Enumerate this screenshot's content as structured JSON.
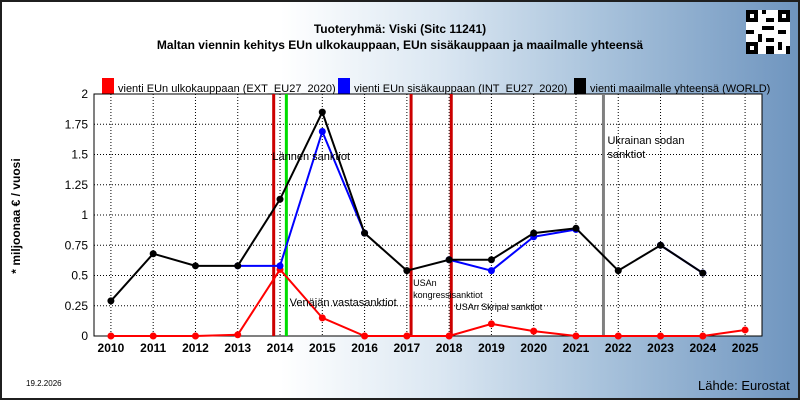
{
  "header": {
    "title": "Tuoteryhmä: Viski (Sitc 11241)",
    "subtitle": "Maltan viennin kehitys EUn ulkokauppaan, EUn sisäkauppaan ja maailmalle yhteensä"
  },
  "footer": {
    "date": "19.2.2026",
    "source": "Lähde: Eurostat"
  },
  "colors": {
    "ext": "#ff0000",
    "int": "#0000ff",
    "world": "#000000",
    "sanction_red": "#cc0000",
    "sanction_green": "#00dd00",
    "ukraine": "#808080"
  },
  "chart_data": {
    "type": "line",
    "x": [
      2010,
      2011,
      2012,
      2013,
      2014,
      2015,
      2016,
      2017,
      2018,
      2019,
      2020,
      2021,
      2022,
      2023,
      2024,
      2025
    ],
    "xlim": [
      2009.6,
      2025.4
    ],
    "ylim": [
      0,
      2
    ],
    "yticks": [
      "0",
      "0.25",
      "0.5",
      "0.75",
      "1",
      "1.25",
      "1.5",
      "1.75",
      "2"
    ],
    "yticks_values": [
      0,
      0.25,
      0.5,
      0.75,
      1,
      1.25,
      1.5,
      1.75,
      2
    ],
    "ylabel": "* miljoonaa € / vuosi",
    "xlabel": "",
    "grid": true,
    "legend_position": "top",
    "series": [
      {
        "name": "vienti EUn ulkokauppaan (EXT_EU27_2020)",
        "color": "#ff0000",
        "values": [
          0.0,
          0.0,
          0.0,
          0.01,
          0.55,
          0.15,
          0.0,
          0.0,
          0.0,
          0.1,
          0.04,
          0.0,
          0.0,
          0.0,
          0.0,
          0.05
        ]
      },
      {
        "name": "vienti EUn sisäkauppaan (INT_EU27_2020)",
        "color": "#0000ff",
        "values": [
          null,
          null,
          null,
          0.58,
          0.58,
          1.69,
          0.85,
          null,
          0.63,
          0.54,
          0.82,
          0.88,
          null,
          0.75,
          0.52,
          null
        ]
      },
      {
        "name": "vienti maailmalle yhteensä (WORLD)",
        "color": "#000000",
        "values": [
          0.29,
          0.68,
          0.58,
          0.58,
          1.13,
          1.85,
          0.85,
          0.54,
          0.63,
          0.63,
          0.85,
          0.89,
          0.54,
          0.75,
          0.52,
          null
        ]
      }
    ],
    "events": [
      {
        "x": 2013.85,
        "color": "#cc0000",
        "label": "Venäjän vastasanktiot",
        "label_pos": "low"
      },
      {
        "x": 2014.15,
        "color": "#00dd00",
        "label": "Lännen sanktiot",
        "label_pos": "high"
      },
      {
        "x": 2017.1,
        "color": "#cc0000",
        "label": "USAn kongressisanktiot",
        "label_pos": "mid"
      },
      {
        "x": 2018.05,
        "color": "#cc0000",
        "label": "USAn Skripal sanktiot",
        "label_pos": "lowmid"
      },
      {
        "x": 2021.65,
        "color": "#808080",
        "label": "Ukrainan sodan sanktiot",
        "label_pos": "top"
      }
    ]
  }
}
